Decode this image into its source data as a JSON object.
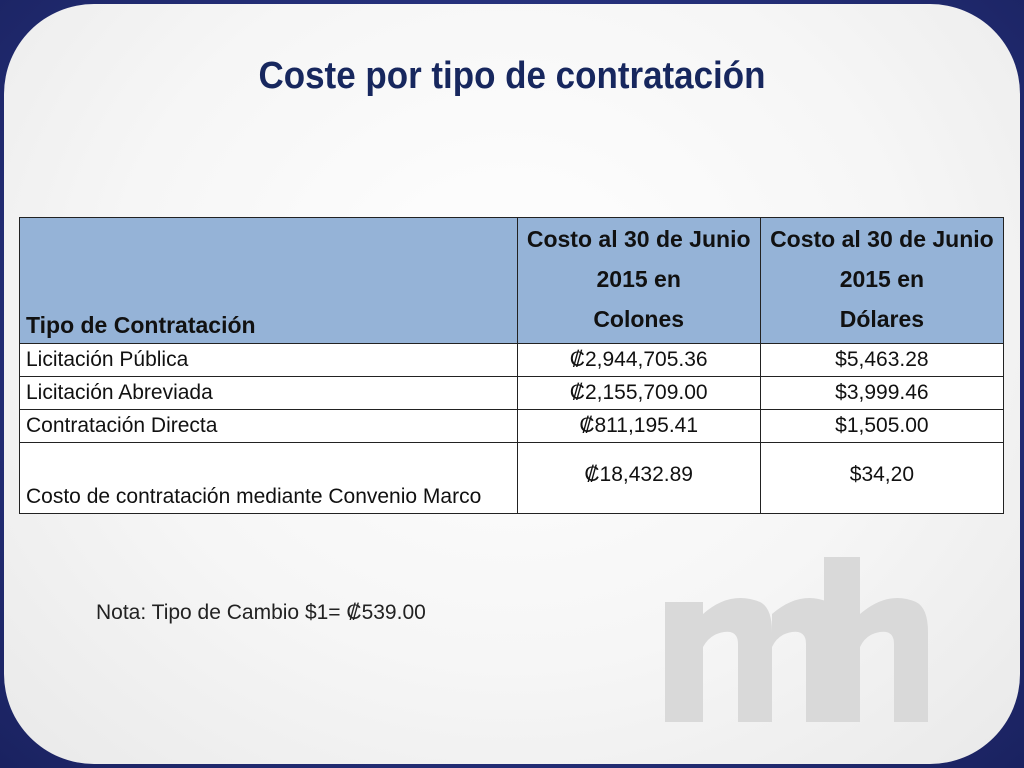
{
  "slide": {
    "title": "Coste por tipo de contratación"
  },
  "table": {
    "headers": {
      "tipo": "Tipo de Contratación",
      "colones": [
        "Costo al 30 de Junio",
        "2015 en",
        "Colones"
      ],
      "dolares": [
        "Costo al 30 de Junio",
        "2015 en",
        "Dólares"
      ]
    },
    "rows": [
      {
        "tipo": "Licitación Pública",
        "colones": "₡2,944,705.36",
        "dolares": "$5,463.28"
      },
      {
        "tipo": "Licitación Abreviada",
        "colones": "₡2,155,709.00",
        "dolares": "$3,999.46"
      },
      {
        "tipo": "Contratación Directa",
        "colones": "₡811,195.41",
        "dolares": "$1,505.00"
      },
      {
        "tipo": "Costo de contratación mediante Convenio Marco",
        "colones": "₡18,432.89",
        "dolares": "$34,20"
      }
    ]
  },
  "note": "Nota: Tipo de Cambio $1= ₡539.00",
  "logo": {
    "text": "mh",
    "color": "#d9d9d9"
  },
  "colors": {
    "title": "#17275e",
    "header_bg": "#95b3d7",
    "frame": "#2b3a8c"
  }
}
